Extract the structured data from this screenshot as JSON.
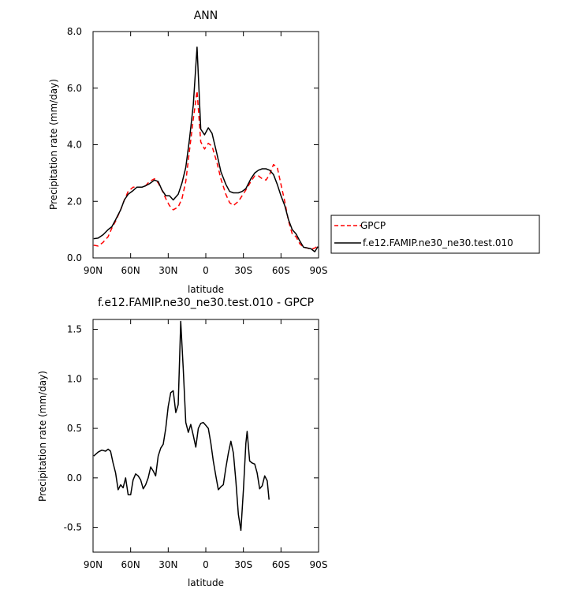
{
  "chart_data": [
    {
      "type": "line",
      "title": "ANN",
      "xlabel": "latitude",
      "ylabel": "Precipitation rate (mm/day)",
      "xlim": [
        90,
        -90
      ],
      "ylim": [
        0,
        8
      ],
      "x_ticks": [
        90,
        60,
        30,
        0,
        -30,
        -60,
        -90
      ],
      "x_tick_labels": [
        "90N",
        "60N",
        "30N",
        "0",
        "30S",
        "60S",
        "90S"
      ],
      "y_ticks": [
        0,
        2,
        4,
        6,
        8
      ],
      "y_tick_labels": [
        "0.0",
        "2.0",
        "4.0",
        "6.0",
        "8.0"
      ],
      "legend_position": "right",
      "series": [
        {
          "name": "GPCP",
          "color": "#ff0000",
          "style": "dashed",
          "points": [
            [
              89.5,
              0.45
            ],
            [
              86,
              0.42
            ],
            [
              82,
              0.55
            ],
            [
              78,
              0.75
            ],
            [
              75,
              1.05
            ],
            [
              72,
              1.3
            ],
            [
              68,
              1.7
            ],
            [
              65,
              2.05
            ],
            [
              62,
              2.35
            ],
            [
              58,
              2.5
            ],
            [
              55,
              2.5
            ],
            [
              51,
              2.5
            ],
            [
              48,
              2.55
            ],
            [
              45,
              2.7
            ],
            [
              41,
              2.8
            ],
            [
              38,
              2.65
            ],
            [
              35,
              2.4
            ],
            [
              32,
              2.1
            ],
            [
              29,
              1.85
            ],
            [
              26,
              1.7
            ],
            [
              22,
              1.8
            ],
            [
              19,
              2.1
            ],
            [
              16,
              2.7
            ],
            [
              13,
              3.8
            ],
            [
              10,
              4.9
            ],
            [
              7,
              5.9
            ],
            [
              4,
              4.1
            ],
            [
              1,
              3.85
            ],
            [
              -2,
              4.05
            ],
            [
              -5,
              3.95
            ],
            [
              -9,
              3.35
            ],
            [
              -12,
              2.8
            ],
            [
              -16,
              2.25
            ],
            [
              -19,
              1.95
            ],
            [
              -22,
              1.85
            ],
            [
              -26,
              2.0
            ],
            [
              -29,
              2.2
            ],
            [
              -32,
              2.4
            ],
            [
              -36,
              2.7
            ],
            [
              -39,
              2.9
            ],
            [
              -42,
              2.9
            ],
            [
              -45,
              2.8
            ],
            [
              -48,
              2.75
            ],
            [
              -51,
              2.95
            ],
            [
              -54,
              3.3
            ],
            [
              -57,
              3.2
            ],
            [
              -60,
              2.6
            ],
            [
              -63,
              2.0
            ],
            [
              -66,
              1.3
            ],
            [
              -69,
              0.85
            ],
            [
              -72,
              0.75
            ],
            [
              -75,
              0.5
            ],
            [
              -78,
              0.38
            ],
            [
              -81,
              0.35
            ],
            [
              -84,
              0.3
            ],
            [
              -87,
              0.35
            ],
            [
              -89.5,
              0.42
            ]
          ]
        },
        {
          "name": "f.e12.FAMIP.ne30_ne30.test.010",
          "color": "#000000",
          "style": "solid",
          "points": [
            [
              89.5,
              0.68
            ],
            [
              86,
              0.7
            ],
            [
              82,
              0.82
            ],
            [
              78,
              1.0
            ],
            [
              75,
              1.1
            ],
            [
              72,
              1.35
            ],
            [
              68,
              1.7
            ],
            [
              65,
              2.05
            ],
            [
              62,
              2.25
            ],
            [
              58,
              2.38
            ],
            [
              55,
              2.5
            ],
            [
              51,
              2.5
            ],
            [
              48,
              2.55
            ],
            [
              45,
              2.62
            ],
            [
              41,
              2.75
            ],
            [
              38,
              2.7
            ],
            [
              35,
              2.4
            ],
            [
              32,
              2.2
            ],
            [
              29,
              2.2
            ],
            [
              26,
              2.05
            ],
            [
              22,
              2.25
            ],
            [
              19,
              2.65
            ],
            [
              16,
              3.2
            ],
            [
              13,
              4.2
            ],
            [
              10,
              5.4
            ],
            [
              7,
              7.45
            ],
            [
              4,
              4.55
            ],
            [
              1,
              4.35
            ],
            [
              -2,
              4.6
            ],
            [
              -5,
              4.4
            ],
            [
              -9,
              3.65
            ],
            [
              -12,
              3.05
            ],
            [
              -16,
              2.6
            ],
            [
              -19,
              2.35
            ],
            [
              -22,
              2.3
            ],
            [
              -26,
              2.3
            ],
            [
              -29,
              2.35
            ],
            [
              -32,
              2.45
            ],
            [
              -36,
              2.8
            ],
            [
              -39,
              3.0
            ],
            [
              -42,
              3.1
            ],
            [
              -45,
              3.15
            ],
            [
              -48,
              3.15
            ],
            [
              -51,
              3.1
            ],
            [
              -54,
              2.95
            ],
            [
              -57,
              2.6
            ],
            [
              -60,
              2.2
            ],
            [
              -63,
              1.85
            ],
            [
              -66,
              1.35
            ],
            [
              -69,
              1.0
            ],
            [
              -72,
              0.85
            ],
            [
              -75,
              0.6
            ],
            [
              -78,
              0.38
            ],
            [
              -81,
              0.35
            ],
            [
              -84,
              0.32
            ],
            [
              -87,
              0.22
            ],
            [
              -89.5,
              0.4
            ]
          ]
        }
      ]
    },
    {
      "type": "line",
      "title": "f.e12.FAMIP.ne30_ne30.test.010 - GPCP",
      "xlabel": "latitude",
      "ylabel": "Precipitation rate (mm/day)",
      "xlim": [
        90,
        -90
      ],
      "ylim": [
        -0.75,
        1.6
      ],
      "x_ticks": [
        90,
        60,
        30,
        0,
        -30,
        -60,
        -90
      ],
      "x_tick_labels": [
        "90N",
        "60N",
        "30N",
        "0",
        "30S",
        "60S",
        "90S"
      ],
      "y_ticks": [
        -0.5,
        0,
        0.5,
        1.0,
        1.5
      ],
      "y_tick_labels": [
        "-0.5",
        "0.0",
        "0.5",
        "1.0",
        "1.5"
      ],
      "series": [
        {
          "name": "",
          "color": "#000000",
          "style": "solid",
          "points": [
            [
              89.5,
              0.22
            ],
            [
              86,
              0.26
            ],
            [
              83,
              0.28
            ],
            [
              80,
              0.27
            ],
            [
              78,
              0.29
            ],
            [
              76,
              0.27
            ],
            [
              74,
              0.15
            ],
            [
              72,
              0.05
            ],
            [
              70,
              -0.12
            ],
            [
              68,
              -0.07
            ],
            [
              66,
              -0.1
            ],
            [
              64,
              0.0
            ],
            [
              62,
              -0.17
            ],
            [
              60,
              -0.17
            ],
            [
              58,
              -0.02
            ],
            [
              56,
              0.04
            ],
            [
              54,
              0.02
            ],
            [
              52,
              -0.02
            ],
            [
              50,
              -0.11
            ],
            [
              48,
              -0.07
            ],
            [
              46,
              0.0
            ],
            [
              44,
              0.11
            ],
            [
              42,
              0.07
            ],
            [
              40,
              0.02
            ],
            [
              38,
              0.22
            ],
            [
              36,
              0.3
            ],
            [
              34,
              0.34
            ],
            [
              32,
              0.5
            ],
            [
              30,
              0.72
            ],
            [
              28,
              0.86
            ],
            [
              26,
              0.88
            ],
            [
              24,
              0.66
            ],
            [
              22,
              0.74
            ],
            [
              20,
              1.58
            ],
            [
              18,
              1.1
            ],
            [
              16,
              0.56
            ],
            [
              14,
              0.46
            ],
            [
              12,
              0.54
            ],
            [
              10,
              0.43
            ],
            [
              8,
              0.31
            ],
            [
              6,
              0.5
            ],
            [
              4,
              0.55
            ],
            [
              2,
              0.56
            ],
            [
              0,
              0.53
            ],
            [
              -2,
              0.5
            ],
            [
              -4,
              0.35
            ],
            [
              -6,
              0.17
            ],
            [
              -8,
              0.02
            ],
            [
              -10,
              -0.12
            ],
            [
              -12,
              -0.09
            ],
            [
              -14,
              -0.07
            ],
            [
              -16,
              0.1
            ],
            [
              -18,
              0.25
            ],
            [
              -20,
              0.37
            ],
            [
              -22,
              0.25
            ],
            [
              -24,
              -0.03
            ],
            [
              -26,
              -0.37
            ],
            [
              -28,
              -0.53
            ],
            [
              -30,
              -0.12
            ],
            [
              -32,
              0.35
            ],
            [
              -33,
              0.47
            ],
            [
              -35,
              0.17
            ],
            [
              -37,
              0.15
            ],
            [
              -39,
              0.14
            ],
            [
              -41,
              0.05
            ],
            [
              -43,
              -0.11
            ],
            [
              -45,
              -0.08
            ],
            [
              -47,
              0.02
            ],
            [
              -49,
              -0.03
            ],
            [
              -50.5,
              -0.22
            ]
          ]
        }
      ]
    }
  ]
}
